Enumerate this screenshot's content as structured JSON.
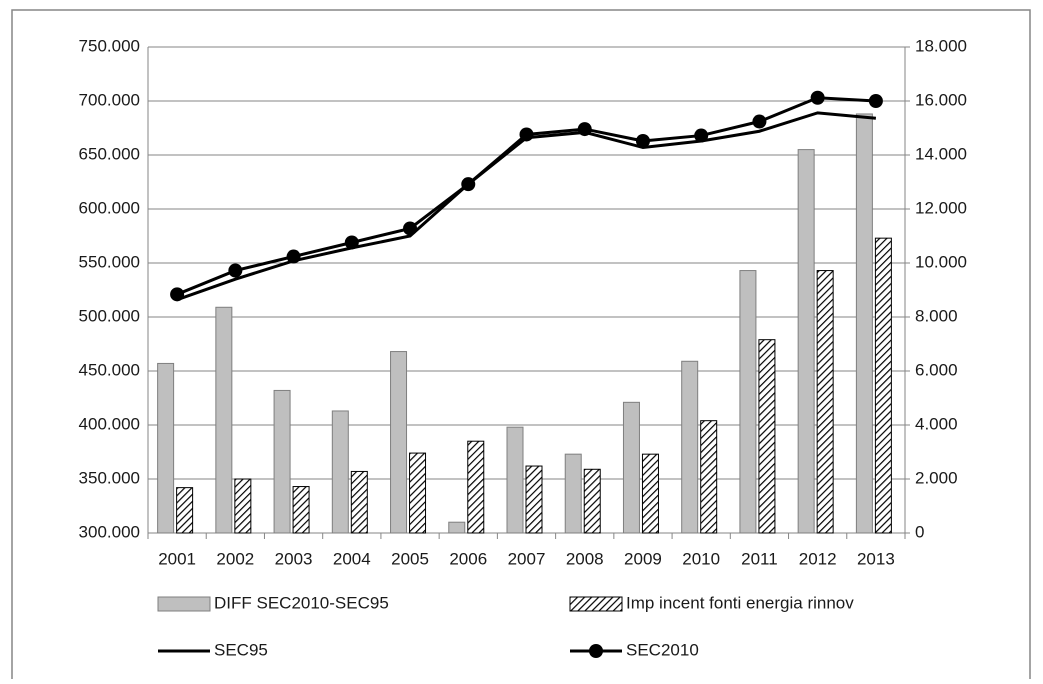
{
  "chart_data": {
    "type": "bar",
    "categories": [
      "2001",
      "2002",
      "2003",
      "2004",
      "2005",
      "2006",
      "2007",
      "2008",
      "2009",
      "2010",
      "2011",
      "2012",
      "2013"
    ],
    "series": [
      {
        "name": "DIFF SEC2010-SEC95",
        "type": "bar",
        "axis": "y2",
        "color": "#bfbfbf",
        "hatch": false,
        "values": [
          6280,
          8360,
          5280,
          4520,
          6720,
          400,
          3920,
          2920,
          4840,
          6360,
          9720,
          14200,
          15520
        ]
      },
      {
        "name": "Imp incent fonti energia rinnov",
        "type": "bar",
        "axis": "y2",
        "color": "#000000",
        "hatch": true,
        "values": [
          1680,
          2000,
          1720,
          2280,
          2960,
          3400,
          2480,
          2360,
          2920,
          4160,
          7160,
          9720,
          10920
        ]
      },
      {
        "name": "SEC95",
        "type": "line",
        "color": "#000000",
        "markers": false,
        "values": [
          516000,
          535000,
          552000,
          564000,
          575000,
          623000,
          666000,
          671000,
          657000,
          663000,
          672000,
          689000,
          684000
        ]
      },
      {
        "name": "SEC2010",
        "type": "line",
        "color": "#000000",
        "markers": true,
        "values": [
          521000,
          543000,
          556000,
          569000,
          582000,
          623000,
          669000,
          674000,
          663000,
          668000,
          681000,
          703000,
          700000
        ]
      }
    ],
    "ylim": [
      300000,
      750000
    ],
    "yticks": [
      {
        "value": 300000,
        "label": "300.000"
      },
      {
        "value": 350000,
        "label": "350.000"
      },
      {
        "value": 400000,
        "label": "400.000"
      },
      {
        "value": 450000,
        "label": "450.000"
      },
      {
        "value": 500000,
        "label": "500.000"
      },
      {
        "value": 550000,
        "label": "550.000"
      },
      {
        "value": 600000,
        "label": "600.000"
      },
      {
        "value": 650000,
        "label": "650.000"
      },
      {
        "value": 700000,
        "label": "700.000"
      },
      {
        "value": 750000,
        "label": "750.000"
      }
    ],
    "y2lim": [
      0,
      18000
    ],
    "y2ticks": [
      0,
      {
        "value": 2000,
        "label": "2.000"
      },
      {
        "value": 4000,
        "label": "4.000"
      },
      {
        "value": 6000,
        "label": "6.000"
      },
      {
        "value": 8000,
        "label": "8.000"
      },
      {
        "value": 10000,
        "label": "10.000"
      },
      {
        "value": 12000,
        "label": "12.000"
      },
      {
        "value": 14000,
        "label": "14.000"
      },
      {
        "value": 16000,
        "label": "16.000"
      },
      {
        "value": 18000,
        "label": "18.000"
      }
    ],
    "grid": true,
    "legend": "bottom"
  }
}
